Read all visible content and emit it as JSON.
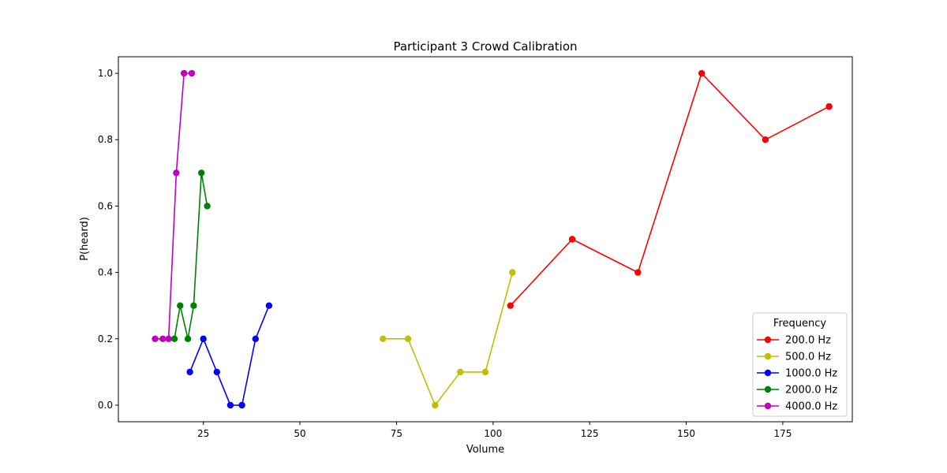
{
  "chart_data": {
    "type": "line",
    "title": "Participant 3 Crowd Calibration",
    "xlabel": "Volume",
    "ylabel": "P(heard)",
    "xlim": [
      3,
      193
    ],
    "ylim": [
      -0.05,
      1.05
    ],
    "xticks": [
      25,
      50,
      75,
      100,
      125,
      150,
      175
    ],
    "yticks": [
      0.0,
      0.2,
      0.4,
      0.6,
      0.8,
      1.0
    ],
    "legend": {
      "title": "Frequency",
      "position": "lower-right"
    },
    "grid": false,
    "series": [
      {
        "name": "200.0 Hz",
        "color": "#ff0000",
        "x": [
          104.5,
          120.5,
          137.5,
          154.0,
          170.5,
          187.0
        ],
        "y": [
          0.3,
          0.5,
          0.4,
          1.0,
          0.8,
          0.9
        ]
      },
      {
        "name": "500.0 Hz",
        "color": "#bfbf00",
        "x": [
          71.5,
          78.0,
          85.0,
          91.5,
          98.0,
          105.0
        ],
        "y": [
          0.2,
          0.2,
          0.0,
          0.1,
          0.1,
          0.4
        ]
      },
      {
        "name": "1000.0 Hz",
        "color": "#0000ff",
        "x": [
          21.5,
          25.0,
          28.5,
          32.0,
          35.0,
          38.5,
          42.0
        ],
        "y": [
          0.1,
          0.2,
          0.1,
          0.0,
          0.0,
          0.2,
          0.3
        ]
      },
      {
        "name": "2000.0 Hz",
        "color": "#008000",
        "x": [
          17.5,
          19.0,
          21.0,
          22.5,
          24.5,
          26.0
        ],
        "y": [
          0.2,
          0.3,
          0.2,
          0.3,
          0.7,
          0.6
        ]
      },
      {
        "name": "4000.0 Hz",
        "color": "#bf00bf",
        "x": [
          12.5,
          14.5,
          16.0,
          18.0,
          20.0,
          22.0
        ],
        "y": [
          0.2,
          0.2,
          0.2,
          0.7,
          1.0,
          1.0
        ]
      }
    ]
  }
}
